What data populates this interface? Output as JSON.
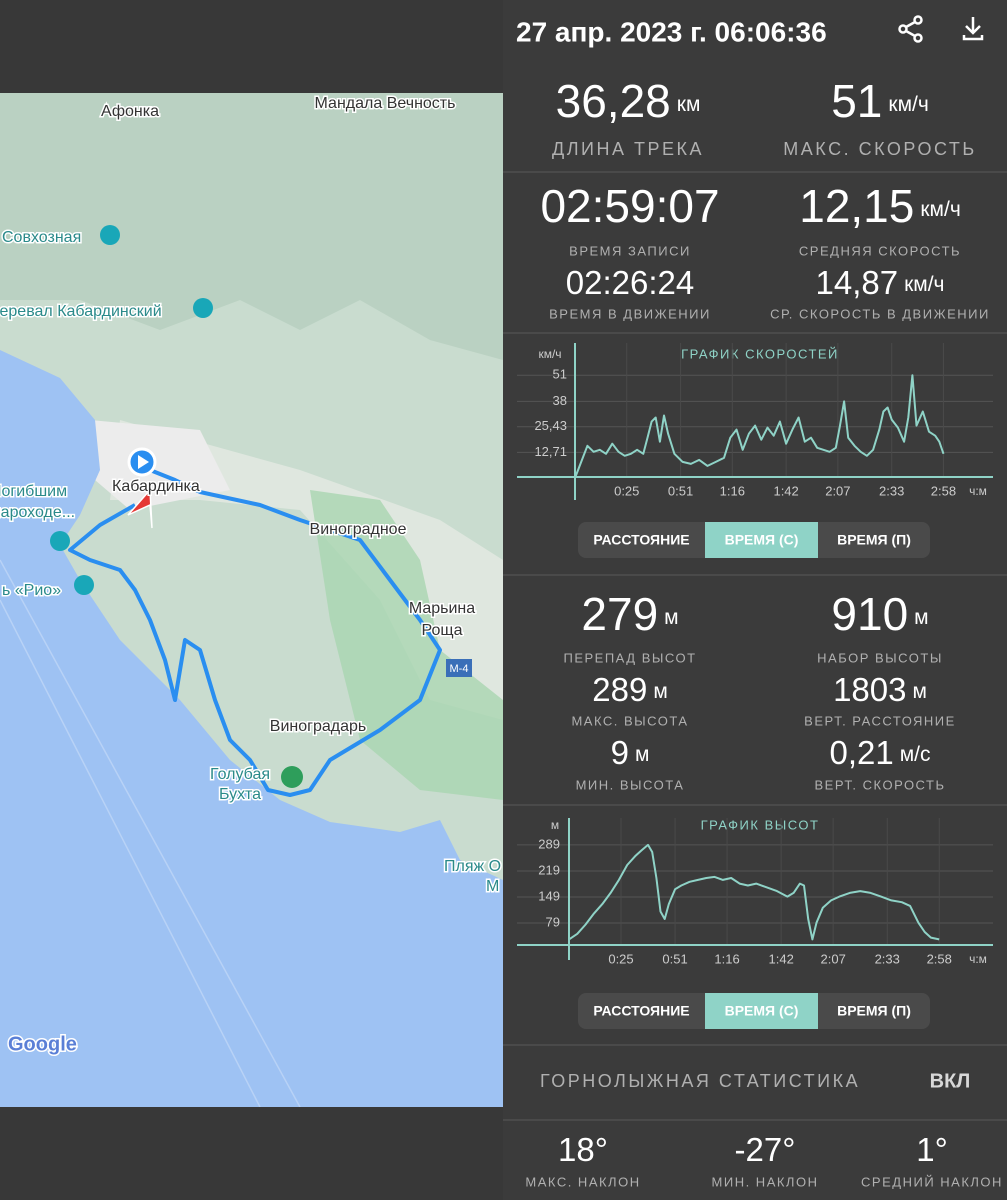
{
  "header": {
    "title": "27 апр. 2023 г. 06:06:36"
  },
  "map": {
    "labels": [
      "Афонка",
      "Мандала Вечность",
      "Совхозная",
      "Перевал Кабардинский",
      "Кабардинка",
      "Погибшим",
      "пароходе...",
      "ь «Рио»",
      "Виноградное",
      "Марьина",
      "Роща",
      "М-4",
      "Виноградарь",
      "Голубая",
      "Бухта",
      "Пляж О",
      "М",
      "Google"
    ]
  },
  "track": [
    {
      "value": "36,28",
      "unit": "км",
      "label": "ДЛИНА ТРЕКА"
    },
    {
      "value": "51",
      "unit": "км/ч",
      "label": "МАКС. СКОРОСТЬ"
    }
  ],
  "time": [
    {
      "value": "02:59:07",
      "label": "ВРЕМЯ ЗАПИСИ"
    },
    {
      "value": "12,15",
      "unit": "км/ч",
      "label": "СРЕДНЯЯ СКОРОСТЬ"
    },
    {
      "value": "02:26:24",
      "label": "ВРЕМЯ В ДВИЖЕНИИ"
    },
    {
      "value": "14,87",
      "unit": "км/ч",
      "label": "СР. СКОРОСТЬ В ДВИЖЕНИИ"
    }
  ],
  "speed_buttons": [
    "РАССТОЯНИЕ",
    "ВРЕМЯ (С)",
    "ВРЕМЯ (П)"
  ],
  "altitude": [
    {
      "value": "279",
      "unit": "м",
      "label": "ПЕРЕПАД ВЫСОТ"
    },
    {
      "value": "910",
      "unit": "м",
      "label": "НАБОР ВЫСОТЫ"
    },
    {
      "value": "289",
      "unit": "м",
      "label": "МАКС. ВЫСОТА"
    },
    {
      "value": "1803",
      "unit": "м",
      "label": "ВЕРТ. РАССТОЯНИЕ"
    },
    {
      "value": "9",
      "unit": "м",
      "label": "МИН. ВЫСОТА"
    },
    {
      "value": "0,21",
      "unit": "м/с",
      "label": "ВЕРТ. СКОРОСТЬ"
    }
  ],
  "elevation_buttons": [
    "РАССТОЯНИЕ",
    "ВРЕМЯ (С)",
    "ВРЕМЯ (П)"
  ],
  "ski": {
    "title": "ГОРНОЛЫЖНАЯ СТАТИСТИКА",
    "toggle": "ВКЛ",
    "stats": [
      {
        "value": "18°",
        "label": "МАКС. НАКЛОН"
      },
      {
        "value": "-27°",
        "label": "МИН. НАКЛОН"
      },
      {
        "value": "1°",
        "label": "СРЕДНИЙ НАКЛОН"
      }
    ]
  },
  "chart_data": [
    {
      "type": "line",
      "title": "ГРАФИК СКОРОСТЕЙ",
      "y_label": "км/ч",
      "x_label": "ч:м",
      "color": "#8fd3c7",
      "x": [
        0,
        3,
        6,
        9,
        12,
        15,
        18,
        21,
        24,
        27,
        30,
        33,
        35,
        37,
        39,
        41,
        43,
        45,
        48,
        52,
        56,
        60,
        64,
        68,
        72,
        75,
        78,
        81,
        84,
        87,
        90,
        93,
        96,
        99,
        102,
        105,
        108,
        111,
        114,
        117,
        120,
        123,
        126,
        128,
        130,
        132,
        135,
        138,
        141,
        144,
        147,
        149,
        151,
        153,
        156,
        159,
        161,
        163,
        165,
        168,
        171,
        174,
        176,
        178
      ],
      "values": [
        0,
        8,
        16,
        13,
        14,
        12,
        17,
        13,
        11,
        12,
        14,
        12,
        20,
        28,
        30,
        18,
        31,
        22,
        12,
        8,
        7,
        9,
        6,
        8,
        10,
        20,
        24,
        14,
        22,
        26,
        19,
        25,
        21,
        28,
        17,
        24,
        30,
        18,
        20,
        15,
        14,
        13,
        15,
        26,
        38,
        20,
        16,
        13,
        11,
        14,
        24,
        33,
        35,
        29,
        25,
        18,
        30,
        51,
        26,
        33,
        23,
        21,
        18,
        12
      ],
      "xlim": [
        0,
        200
      ],
      "xticks": [
        {
          "value": 25,
          "label": "0:25"
        },
        {
          "value": 51,
          "label": "0:51"
        },
        {
          "value": 76,
          "label": "1:16"
        },
        {
          "value": 102,
          "label": "1:42"
        },
        {
          "value": 127,
          "label": "2:07"
        },
        {
          "value": 153,
          "label": "2:33"
        },
        {
          "value": 178,
          "label": "2:58"
        }
      ],
      "ylim": [
        0,
        66
      ],
      "yticks": [
        {
          "value": 12.71,
          "label": "12,71"
        },
        {
          "value": 25.43,
          "label": "25,43"
        },
        38,
        51
      ],
      "grid": true
    },
    {
      "type": "line",
      "title": "ГРАФИК ВЫСОТ",
      "y_label": "м",
      "x_label": "ч:м",
      "color": "#8fd3c7",
      "x": [
        0,
        4,
        8,
        12,
        16,
        20,
        24,
        28,
        32,
        35,
        38,
        40,
        42,
        44,
        46,
        48,
        51,
        54,
        58,
        62,
        66,
        70,
        74,
        78,
        82,
        86,
        90,
        95,
        100,
        105,
        108,
        111,
        113,
        115,
        117,
        119,
        122,
        126,
        130,
        135,
        140,
        145,
        150,
        155,
        160,
        164,
        168,
        171,
        174,
        178
      ],
      "values": [
        35,
        50,
        75,
        105,
        130,
        160,
        195,
        235,
        260,
        275,
        289,
        270,
        200,
        110,
        90,
        130,
        170,
        180,
        190,
        195,
        200,
        203,
        195,
        200,
        185,
        180,
        185,
        175,
        165,
        150,
        160,
        185,
        180,
        90,
        35,
        80,
        120,
        140,
        150,
        160,
        165,
        160,
        150,
        140,
        135,
        125,
        80,
        55,
        40,
        35
      ],
      "xlim": [
        0,
        200
      ],
      "xticks": [
        {
          "value": 25,
          "label": "0:25"
        },
        {
          "value": 51,
          "label": "0:51"
        },
        {
          "value": 76,
          "label": "1:16"
        },
        {
          "value": 102,
          "label": "1:42"
        },
        {
          "value": 127,
          "label": "2:07"
        },
        {
          "value": 153,
          "label": "2:33"
        },
        {
          "value": 178,
          "label": "2:58"
        }
      ],
      "ylim": [
        20,
        356
      ],
      "yticks": [
        79,
        149,
        219,
        289
      ],
      "grid": true
    }
  ]
}
